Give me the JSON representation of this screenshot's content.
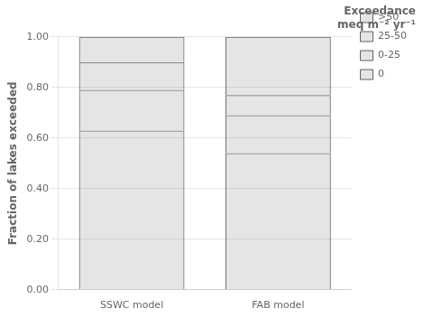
{
  "chart_data": {
    "type": "bar",
    "stacked": true,
    "categories": [
      "SSWC model",
      "FAB model"
    ],
    "series": [
      {
        "name": "0",
        "values": [
          0.63,
          0.54
        ]
      },
      {
        "name": "0-25",
        "values": [
          0.16,
          0.15
        ]
      },
      {
        "name": "25-50",
        "values": [
          0.11,
          0.08
        ]
      },
      {
        "name": ">50",
        "values": [
          0.1,
          0.23
        ]
      }
    ],
    "ylabel": "Fraction of lakes exceeded",
    "annotations": [
      {
        "text": "Exceedance\nmeq m⁻² yr⁻¹"
      }
    ],
    "ylim": [
      0.0,
      1.0
    ],
    "yticks": [
      {
        "value": 0,
        "label": "0.00"
      },
      {
        "value": 0.2,
        "label": "0.20"
      },
      {
        "value": 0.4,
        "label": "0.40"
      },
      {
        "value": 0.6,
        "label": "0.60"
      },
      {
        "value": 0.8,
        "label": "0.80"
      },
      {
        "value": 1.0,
        "label": "1.00"
      }
    ],
    "grid": "y",
    "legend": "upper right"
  }
}
